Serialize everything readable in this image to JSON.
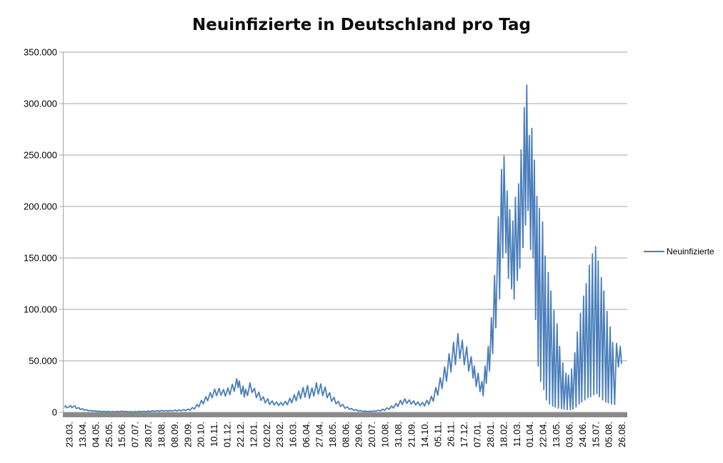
{
  "colors": {
    "background": "#FFFFFF",
    "series_blue": "#4A7EBB",
    "gridline": "#A6A6A6",
    "axis_bar": "#8A8A8A",
    "tick_text": "#000000",
    "title_text": "#0D0D0D"
  },
  "legend": {
    "position": "right",
    "entries": [
      {
        "label": "Neuinfizierte",
        "color": "#4A7EBB"
      }
    ]
  },
  "chart_data": {
    "type": "line",
    "title": "Neuinfizierte in Deutschland pro Tag",
    "xlabel": "",
    "ylabel": "",
    "ylim": [
      0,
      350000
    ],
    "grid": "horizontal",
    "legend_position": "right",
    "y_ticks": [
      0,
      50000,
      100000,
      150000,
      200000,
      250000,
      300000,
      350000
    ],
    "y_tick_labels": [
      "0",
      "50.000",
      "100.000",
      "150.000",
      "200.000",
      "250.000",
      "300.000",
      "350.000"
    ],
    "x_tick_interval_days": 21,
    "x_tick_labels": [
      "23.03.",
      "13.04.",
      "04.05.",
      "25.05.",
      "15.06.",
      "07.07.",
      "28.07.",
      "18.08.",
      "08.09.",
      "29.09.",
      "20.10.",
      "10.11.",
      "01.12.",
      "22.12.",
      "12.01.",
      "02.02.",
      "23.02.",
      "16.03.",
      "06.04.",
      "27.04.",
      "18.05.",
      "08.06.",
      "29.06.",
      "20.07.",
      "10.08.",
      "31.08.",
      "21.09.",
      "14.10.",
      "05.11.",
      "26.11.",
      "17.12.",
      "07.01.",
      "28.01.",
      "18.02.",
      "11.03.",
      "01.04.",
      "22.04.",
      "13.05.",
      "03.06.",
      "24.06.",
      "15.07.",
      "05.08.",
      "26.08."
    ],
    "series": [
      {
        "name": "Neuinfizierte",
        "color": "#4A7EBB",
        "points": [
          [
            0,
            4800
          ],
          [
            2,
            6300
          ],
          [
            4,
            4400
          ],
          [
            7,
            5000
          ],
          [
            10,
            6600
          ],
          [
            12,
            4300
          ],
          [
            15,
            5900
          ],
          [
            17,
            6100
          ],
          [
            19,
            3600
          ],
          [
            23,
            4600
          ],
          [
            25,
            2700
          ],
          [
            29,
            3500
          ],
          [
            31,
            2000
          ],
          [
            35,
            2600
          ],
          [
            38,
            1500
          ],
          [
            42,
            1800
          ],
          [
            45,
            1100
          ],
          [
            49,
            1400
          ],
          [
            52,
            800
          ],
          [
            56,
            1100
          ],
          [
            59,
            600
          ],
          [
            63,
            900
          ],
          [
            66,
            500
          ],
          [
            70,
            800
          ],
          [
            73,
            450
          ],
          [
            77,
            700
          ],
          [
            80,
            400
          ],
          [
            84,
            850
          ],
          [
            87,
            500
          ],
          [
            91,
            1100
          ],
          [
            94,
            600
          ],
          [
            98,
            800
          ],
          [
            101,
            450
          ],
          [
            105,
            650
          ],
          [
            108,
            380
          ],
          [
            112,
            700
          ],
          [
            115,
            420
          ],
          [
            119,
            950
          ],
          [
            122,
            560
          ],
          [
            126,
            1000
          ],
          [
            129,
            620
          ],
          [
            133,
            1250
          ],
          [
            136,
            760
          ],
          [
            140,
            1450
          ],
          [
            143,
            870
          ],
          [
            147,
            1700
          ],
          [
            150,
            1000
          ],
          [
            154,
            1850
          ],
          [
            157,
            1080
          ],
          [
            161,
            1650
          ],
          [
            164,
            980
          ],
          [
            168,
            1850
          ],
          [
            171,
            1150
          ],
          [
            175,
            2100
          ],
          [
            178,
            1300
          ],
          [
            182,
            2300
          ],
          [
            185,
            1400
          ],
          [
            189,
            2550
          ],
          [
            192,
            1650
          ],
          [
            196,
            3100
          ],
          [
            199,
            2150
          ],
          [
            203,
            4600
          ],
          [
            206,
            3100
          ],
          [
            210,
            7600
          ],
          [
            213,
            5300
          ],
          [
            217,
            11600
          ],
          [
            220,
            8100
          ],
          [
            224,
            15200
          ],
          [
            227,
            11200
          ],
          [
            231,
            19200
          ],
          [
            234,
            14100
          ],
          [
            238,
            22600
          ],
          [
            241,
            16100
          ],
          [
            245,
            23200
          ],
          [
            248,
            16600
          ],
          [
            252,
            22100
          ],
          [
            255,
            15600
          ],
          [
            259,
            23600
          ],
          [
            262,
            17100
          ],
          [
            266,
            27200
          ],
          [
            269,
            20300
          ],
          [
            273,
            32700
          ],
          [
            275,
            24000
          ],
          [
            277,
            30500
          ],
          [
            280,
            17500
          ],
          [
            283,
            25500
          ],
          [
            285,
            14800
          ],
          [
            287,
            22300
          ],
          [
            290,
            16200
          ],
          [
            294,
            28600
          ],
          [
            297,
            19200
          ],
          [
            301,
            23200
          ],
          [
            304,
            14200
          ],
          [
            308,
            19600
          ],
          [
            311,
            11600
          ],
          [
            315,
            15100
          ],
          [
            318,
            9100
          ],
          [
            322,
            13100
          ],
          [
            325,
            7600
          ],
          [
            329,
            11100
          ],
          [
            332,
            7100
          ],
          [
            336,
            10100
          ],
          [
            339,
            6600
          ],
          [
            343,
            9600
          ],
          [
            346,
            6900
          ],
          [
            350,
            10600
          ],
          [
            353,
            7300
          ],
          [
            357,
            13600
          ],
          [
            360,
            9100
          ],
          [
            364,
            17100
          ],
          [
            367,
            11100
          ],
          [
            371,
            20600
          ],
          [
            374,
            13100
          ],
          [
            378,
            24100
          ],
          [
            381,
            14600
          ],
          [
            385,
            26100
          ],
          [
            388,
            13600
          ],
          [
            392,
            23600
          ],
          [
            395,
            15600
          ],
          [
            399,
            28600
          ],
          [
            402,
            17600
          ],
          [
            406,
            27600
          ],
          [
            409,
            16100
          ],
          [
            413,
            24600
          ],
          [
            416,
            14100
          ],
          [
            420,
            19100
          ],
          [
            423,
            10600
          ],
          [
            427,
            14600
          ],
          [
            430,
            8100
          ],
          [
            434,
            10600
          ],
          [
            437,
            5600
          ],
          [
            441,
            7600
          ],
          [
            444,
            3900
          ],
          [
            448,
            5300
          ],
          [
            451,
            2800
          ],
          [
            455,
            3700
          ],
          [
            458,
            1900
          ],
          [
            462,
            2500
          ],
          [
            465,
            1300
          ],
          [
            469,
            1700
          ],
          [
            472,
            900
          ],
          [
            476,
            1200
          ],
          [
            479,
            700
          ],
          [
            483,
            1050
          ],
          [
            486,
            750
          ],
          [
            490,
            1350
          ],
          [
            493,
            950
          ],
          [
            497,
            1950
          ],
          [
            500,
            1250
          ],
          [
            504,
            2900
          ],
          [
            507,
            1900
          ],
          [
            511,
            4300
          ],
          [
            514,
            2900
          ],
          [
            518,
            6100
          ],
          [
            521,
            4100
          ],
          [
            525,
            8600
          ],
          [
            528,
            5600
          ],
          [
            532,
            11600
          ],
          [
            535,
            7600
          ],
          [
            539,
            13100
          ],
          [
            542,
            8600
          ],
          [
            546,
            12100
          ],
          [
            549,
            7900
          ],
          [
            553,
            11100
          ],
          [
            556,
            7100
          ],
          [
            560,
            10100
          ],
          [
            563,
            6400
          ],
          [
            567,
            9600
          ],
          [
            570,
            6100
          ],
          [
            574,
            11600
          ],
          [
            577,
            7600
          ],
          [
            581,
            15600
          ],
          [
            584,
            10600
          ],
          [
            588,
            24100
          ],
          [
            591,
            16600
          ],
          [
            595,
            33600
          ],
          [
            598,
            23100
          ],
          [
            602,
            44100
          ],
          [
            605,
            30100
          ],
          [
            609,
            57100
          ],
          [
            612,
            39100
          ],
          [
            616,
            68100
          ],
          [
            619,
            46100
          ],
          [
            623,
            76500
          ],
          [
            626,
            52100
          ],
          [
            630,
            70100
          ],
          [
            633,
            46100
          ],
          [
            637,
            63600
          ],
          [
            640,
            40100
          ],
          [
            644,
            54100
          ],
          [
            647,
            33100
          ],
          [
            649,
            45000
          ],
          [
            652,
            25000
          ],
          [
            655,
            38000
          ],
          [
            658,
            20000
          ],
          [
            661,
            30000
          ],
          [
            663,
            16000
          ],
          [
            666,
            45000
          ],
          [
            668,
            28000
          ],
          [
            671,
            64000
          ],
          [
            673,
            40000
          ],
          [
            676,
            92000
          ],
          [
            678,
            57000
          ],
          [
            681,
            133000
          ],
          [
            683,
            82000
          ],
          [
            687,
            190000
          ],
          [
            689,
            110000
          ],
          [
            692,
            236000
          ],
          [
            694,
            150000
          ],
          [
            696,
            249000
          ],
          [
            699,
            155000
          ],
          [
            701,
            215000
          ],
          [
            703,
            130000
          ],
          [
            705,
            197000
          ],
          [
            708,
            120000
          ],
          [
            710,
            186000
          ],
          [
            712,
            110000
          ],
          [
            714,
            209000
          ],
          [
            717,
            128000
          ],
          [
            719,
            222000
          ],
          [
            721,
            140000
          ],
          [
            723,
            255000
          ],
          [
            726,
            160000
          ],
          [
            728,
            296000
          ],
          [
            730,
            182000
          ],
          [
            732,
            318000
          ],
          [
            734,
            196000
          ],
          [
            736,
            269000
          ],
          [
            738,
            158000
          ],
          [
            740,
            276000
          ],
          [
            742,
            150000
          ],
          [
            744,
            245000
          ],
          [
            746,
            90000
          ],
          [
            748,
            210000
          ],
          [
            750,
            45000
          ],
          [
            752,
            198000
          ],
          [
            754,
            30000
          ],
          [
            757,
            185000
          ],
          [
            759,
            22000
          ],
          [
            761,
            152000
          ],
          [
            763,
            12000
          ],
          [
            766,
            136000
          ],
          [
            768,
            8000
          ],
          [
            770,
            118000
          ],
          [
            773,
            6000
          ],
          [
            775,
            99000
          ],
          [
            777,
            5000
          ],
          [
            780,
            86000
          ],
          [
            782,
            4000
          ],
          [
            784,
            64000
          ],
          [
            787,
            3500
          ],
          [
            789,
            48000
          ],
          [
            791,
            3000
          ],
          [
            794,
            38000
          ],
          [
            796,
            2500
          ],
          [
            798,
            36000
          ],
          [
            801,
            2600
          ],
          [
            803,
            42000
          ],
          [
            805,
            3100
          ],
          [
            808,
            58000
          ],
          [
            810,
            5100
          ],
          [
            812,
            78000
          ],
          [
            815,
            8100
          ],
          [
            817,
            96000
          ],
          [
            819,
            10100
          ],
          [
            822,
            113000
          ],
          [
            824,
            12100
          ],
          [
            826,
            125000
          ],
          [
            829,
            14100
          ],
          [
            831,
            143000
          ],
          [
            833,
            15100
          ],
          [
            836,
            154000
          ],
          [
            838,
            17100
          ],
          [
            841,
            161000
          ],
          [
            843,
            18100
          ],
          [
            845,
            147000
          ],
          [
            847,
            15100
          ],
          [
            850,
            131000
          ],
          [
            852,
            12100
          ],
          [
            854,
            118000
          ],
          [
            857,
            10100
          ],
          [
            859,
            98000
          ],
          [
            861,
            9100
          ],
          [
            864,
            83000
          ],
          [
            866,
            8100
          ],
          [
            868,
            68000
          ],
          [
            871,
            7600
          ],
          [
            874,
            67000
          ],
          [
            877,
            44000
          ],
          [
            880,
            64000
          ],
          [
            882,
            47000
          ]
        ]
      }
    ]
  }
}
